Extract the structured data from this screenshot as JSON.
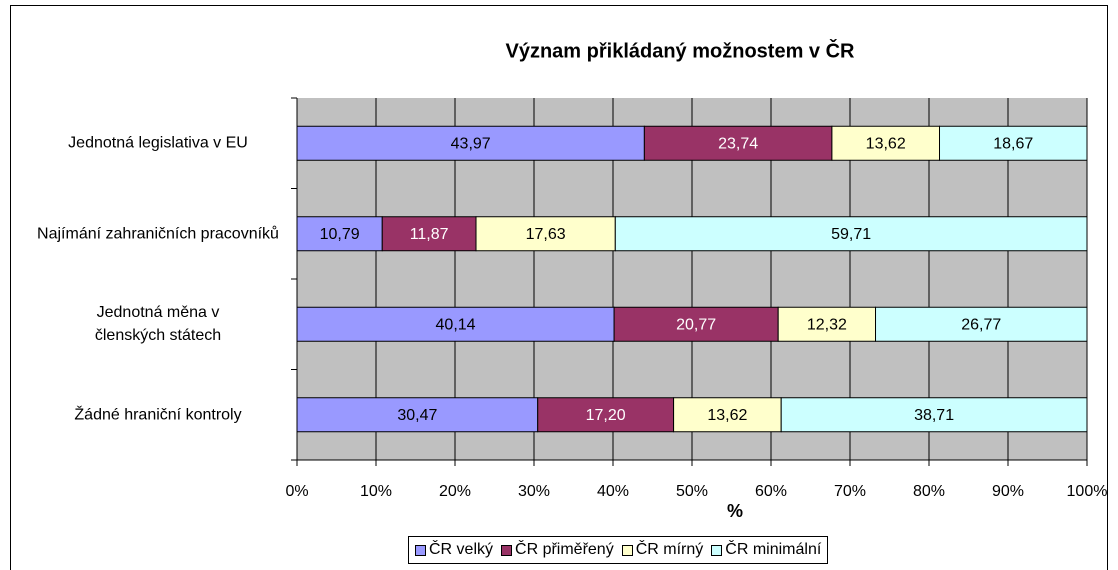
{
  "chart_data": {
    "type": "stacked-bar-horizontal",
    "title": "Význam přikládaný možnostem v ČR",
    "x_axis_label": "%",
    "categories": [
      "Jednotná legislativa v EU",
      "Najímání zahraničních pracovníků",
      "Jednotná měna v členských státech",
      "Žádné hraniční kontroly"
    ],
    "series": [
      {
        "name": "ČR velký",
        "color": "#9999ff",
        "values": [
          43.97,
          10.79,
          40.14,
          30.47
        ],
        "value_labels": [
          "43,97",
          "10,79",
          "40,14",
          "30,47"
        ]
      },
      {
        "name": "ČR přiměřený",
        "color": "#993366",
        "values": [
          23.74,
          11.87,
          20.77,
          17.2
        ],
        "value_labels": [
          "23,74",
          "11,87",
          "20,77",
          "17,20"
        ]
      },
      {
        "name": "ČR mírný",
        "color": "#ffffcc",
        "values": [
          13.62,
          17.63,
          12.32,
          13.62
        ],
        "value_labels": [
          "13,62",
          "17,63",
          "12,32",
          "13,62"
        ]
      },
      {
        "name": "ČR minimální",
        "color": "#ccffff",
        "values": [
          18.67,
          59.71,
          26.77,
          38.71
        ],
        "value_labels": [
          "18,67",
          "59,71",
          "26,77",
          "38,71"
        ]
      }
    ],
    "xlim": [
      0,
      100
    ],
    "xticks": [
      {
        "value": 0,
        "label": "0%"
      },
      {
        "value": 10,
        "label": "10%"
      },
      {
        "value": 20,
        "label": "20%"
      },
      {
        "value": 30,
        "label": "30%"
      },
      {
        "value": 40,
        "label": "40%"
      },
      {
        "value": 50,
        "label": "50%"
      },
      {
        "value": 60,
        "label": "60%"
      },
      {
        "value": 70,
        "label": "70%"
      },
      {
        "value": 80,
        "label": "80%"
      },
      {
        "value": 90,
        "label": "90%"
      },
      {
        "value": 100,
        "label": "100%"
      }
    ],
    "grid": true,
    "legend": "bottom"
  }
}
